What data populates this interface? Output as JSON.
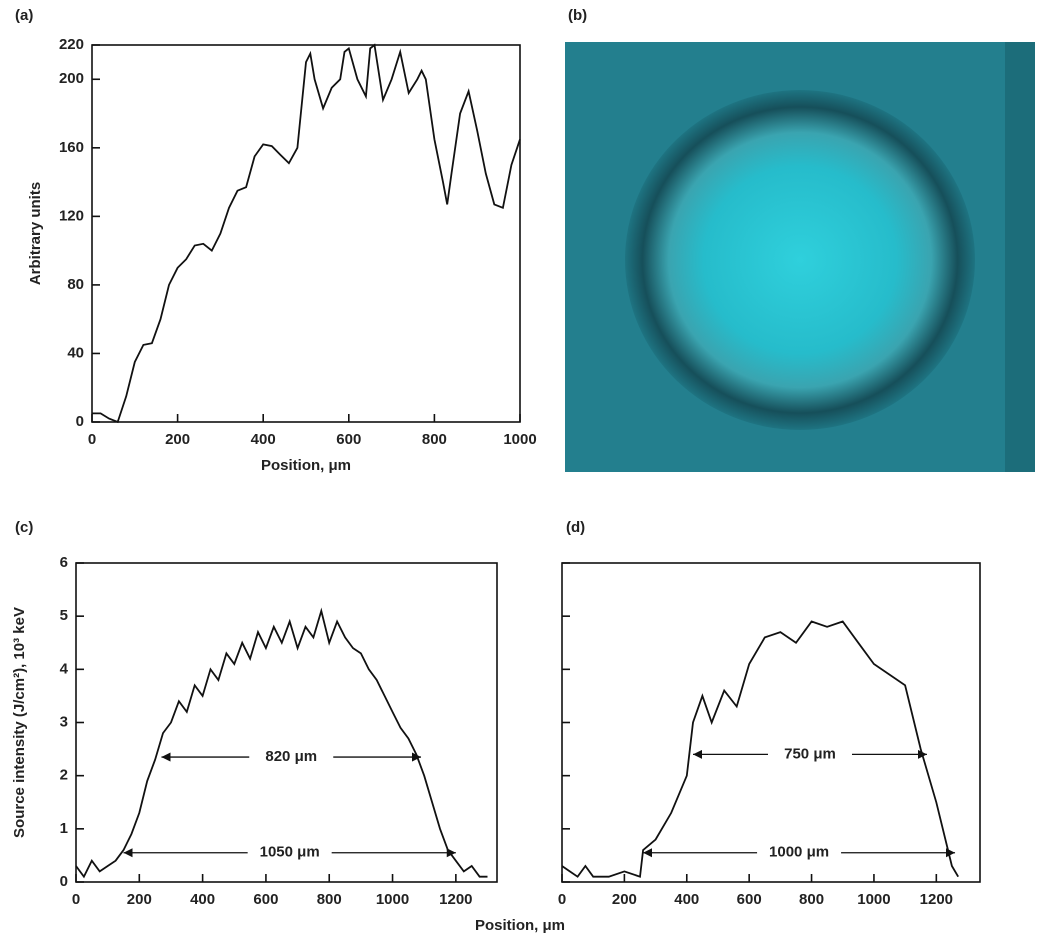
{
  "chart_data": [
    {
      "type": "line",
      "panel": "(a)",
      "ylabel": "Arbitrary units",
      "xlabel": "Position, μm",
      "xlim": [
        0,
        1000
      ],
      "xticks": [
        0,
        200,
        400,
        600,
        800,
        1000
      ],
      "ylim": [
        0,
        220
      ],
      "yticks": [
        0,
        40,
        80,
        120,
        160,
        200,
        220
      ],
      "color": "#111",
      "x": [
        0,
        20,
        40,
        60,
        80,
        100,
        120,
        140,
        160,
        180,
        200,
        220,
        240,
        260,
        280,
        300,
        320,
        340,
        360,
        380,
        400,
        420,
        440,
        460,
        480,
        500,
        510,
        520,
        540,
        560,
        580,
        590,
        600,
        620,
        640,
        650,
        660,
        680,
        700,
        720,
        740,
        760,
        770,
        780,
        800,
        820,
        830,
        840,
        860,
        880,
        900,
        920,
        940,
        960,
        980,
        1000
      ],
      "values": [
        5,
        5,
        2,
        0,
        15,
        35,
        45,
        46,
        60,
        80,
        90,
        95,
        103,
        104,
        100,
        110,
        125,
        135,
        137,
        155,
        162,
        161,
        156,
        151,
        160,
        210,
        215,
        200,
        183,
        195,
        200,
        216,
        218,
        200,
        190,
        218,
        220,
        188,
        200,
        216,
        192,
        200,
        205,
        200,
        165,
        140,
        127,
        145,
        180,
        193,
        170,
        145,
        127,
        125,
        150,
        165
      ]
    },
    {
      "type": "image",
      "panel": "(b)"
    },
    {
      "type": "line",
      "panel": "(c)",
      "ylabel": "Source intensity (J/cm²), 10³ keV",
      "xlabel": "Position, μm",
      "xlim": [
        0,
        1330
      ],
      "xticks": [
        0,
        200,
        400,
        600,
        800,
        1000,
        1200
      ],
      "ylim": [
        0,
        6
      ],
      "yticks": [
        0,
        1,
        2,
        3,
        4,
        5,
        6
      ],
      "color": "#111",
      "x": [
        0,
        25,
        50,
        75,
        100,
        125,
        150,
        175,
        200,
        225,
        250,
        275,
        300,
        325,
        350,
        375,
        400,
        425,
        450,
        475,
        500,
        525,
        550,
        575,
        600,
        625,
        650,
        675,
        700,
        725,
        750,
        775,
        800,
        825,
        850,
        875,
        900,
        925,
        950,
        975,
        1000,
        1025,
        1050,
        1075,
        1100,
        1125,
        1150,
        1175,
        1200,
        1225,
        1250,
        1275,
        1300
      ],
      "values": [
        0.3,
        0.1,
        0.4,
        0.2,
        0.3,
        0.4,
        0.6,
        0.9,
        1.3,
        1.9,
        2.3,
        2.8,
        3.0,
        3.4,
        3.2,
        3.7,
        3.5,
        4.0,
        3.8,
        4.3,
        4.1,
        4.5,
        4.2,
        4.7,
        4.4,
        4.8,
        4.5,
        4.9,
        4.4,
        4.8,
        4.6,
        5.1,
        4.5,
        4.9,
        4.6,
        4.4,
        4.3,
        4.0,
        3.8,
        3.5,
        3.2,
        2.9,
        2.7,
        2.4,
        2.0,
        1.5,
        1.0,
        0.6,
        0.4,
        0.2,
        0.3,
        0.1,
        0.1
      ],
      "annotations": [
        {
          "text": "820 μm",
          "from": 270,
          "to": 1090,
          "y": 2.35
        },
        {
          "text": "1050 μm",
          "from": 150,
          "to": 1200,
          "y": 0.55
        }
      ]
    },
    {
      "type": "line",
      "panel": "(d)",
      "xlim": [
        0,
        1340
      ],
      "xticks": [
        0,
        200,
        400,
        600,
        800,
        1000,
        1200
      ],
      "ylim": [
        0,
        6
      ],
      "yticks": [
        0,
        1,
        2,
        3,
        4,
        5,
        6
      ],
      "ytick_labels": false,
      "color": "#111",
      "x": [
        0,
        25,
        50,
        75,
        100,
        150,
        200,
        250,
        260,
        300,
        350,
        400,
        420,
        450,
        480,
        520,
        560,
        600,
        650,
        700,
        750,
        800,
        850,
        900,
        950,
        1000,
        1050,
        1100,
        1150,
        1200,
        1250,
        1270
      ],
      "values": [
        0.3,
        0.2,
        0.1,
        0.3,
        0.1,
        0.1,
        0.2,
        0.1,
        0.6,
        0.8,
        1.3,
        2.0,
        3.0,
        3.5,
        3.0,
        3.6,
        3.3,
        4.1,
        4.6,
        4.7,
        4.5,
        4.9,
        4.8,
        4.9,
        4.5,
        4.1,
        3.9,
        3.7,
        2.5,
        1.5,
        0.3,
        0.1
      ],
      "annotations": [
        {
          "text": "750 μm",
          "from": 420,
          "to": 1170,
          "y": 2.4
        },
        {
          "text": "1000 μm",
          "from": 260,
          "to": 1260,
          "y": 0.55
        }
      ]
    }
  ]
}
